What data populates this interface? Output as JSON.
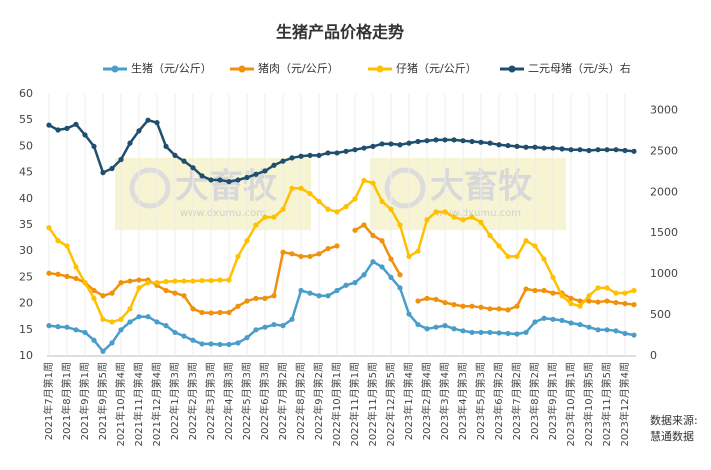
{
  "chart_data": {
    "type": "line",
    "title": "生猪产品价格走势",
    "watermark": "大畜牧",
    "watermark_url": "www.dxumu.com",
    "source": [
      "数据来源:",
      "慧通数据"
    ],
    "categories": [
      "2021年7月第1周",
      null,
      "2021年8月第1周",
      null,
      "2021年9月第1周",
      null,
      "2021年9月第5周",
      null,
      "2021年10月第4周",
      null,
      "2021年11月第4周",
      null,
      "2021年12月第4周",
      null,
      "2022年1月第3周",
      null,
      "2022年2月第3周",
      null,
      "2022年3月第3周",
      null,
      "2022年4月第3周",
      null,
      "2022年5月第3周",
      null,
      "2022年6月第3周",
      null,
      "2022年7月第2周",
      null,
      "2022年8月第2周",
      null,
      "2022年9月第2周",
      null,
      "2022年10月第1周",
      null,
      "2022年11月第1周",
      null,
      "2022年11月第5周",
      null,
      "2022年12月第5周",
      null,
      "2023年1月第4周",
      null,
      "2023年2月第4周",
      null,
      "2023年3月第4周",
      null,
      "2023年4月第3周",
      null,
      "2023年5月第3周",
      null,
      "2023年6月第2周",
      null,
      "2023年7月第2周",
      null,
      "2023年8月第2周",
      null,
      "2023年9月第1周",
      null,
      "2023年10月第1周",
      null,
      "2023年10月第5周",
      null,
      "2023年11月第5周",
      null,
      "2023年12月第4周",
      null
    ],
    "series": [
      {
        "name": "生猪（元/公斤）",
        "color": "#4a9dc9",
        "values": [
          15.8,
          15.6,
          15.5,
          15,
          14.5,
          13,
          10.9,
          12.5,
          15,
          16.5,
          17.5,
          17.5,
          16.5,
          15.8,
          14.5,
          13.8,
          13,
          12.3,
          12.3,
          12.2,
          12.2,
          12.5,
          13.5,
          15,
          15.5,
          16,
          15.8,
          17,
          22.5,
          22,
          21.5,
          21.5,
          22.5,
          23.5,
          24,
          25.5,
          28,
          27,
          25,
          23,
          18,
          16,
          15.2,
          15.5,
          15.8,
          15.2,
          14.8,
          14.5,
          14.5,
          14.5,
          14.4,
          14.3,
          14.2,
          14.5,
          16.5,
          17.2,
          17,
          16.8,
          16.3,
          16,
          15.5,
          15,
          15,
          14.8,
          14.3,
          14
        ]
      },
      {
        "name": "猪肉（元/公斤）",
        "color": "#f0900c",
        "values": [
          25.8,
          25.6,
          25.2,
          24.8,
          24,
          22.5,
          21.5,
          22,
          24,
          24.3,
          24.5,
          24.5,
          23.5,
          22.5,
          22,
          21.5,
          19,
          18.3,
          18.2,
          18.3,
          18.3,
          19.5,
          20.5,
          21,
          21,
          21.5,
          29.8,
          29.5,
          29,
          29,
          29.5,
          30.5,
          31,
          null,
          34,
          35,
          33,
          32,
          28.5,
          25.5,
          null,
          20.5,
          21,
          20.8,
          20.2,
          19.8,
          19.5,
          19.5,
          19.3,
          19,
          19,
          18.8,
          19.5,
          22.8,
          22.5,
          22.5,
          22,
          22,
          21,
          20.5,
          20.5,
          20.3,
          20.5,
          20.2,
          20,
          19.8
        ]
      },
      {
        "name": "仔猪（元/公斤）",
        "color": "#ffc000",
        "values": [
          34.5,
          32,
          31,
          27,
          24,
          21,
          17,
          16.5,
          17,
          19,
          23,
          24,
          24,
          24.2,
          24.3,
          24.3,
          24.3,
          24.4,
          24.4,
          24.5,
          24.5,
          29,
          32,
          35,
          36.5,
          36.5,
          38,
          42,
          42,
          41,
          39.5,
          38,
          37.5,
          38.5,
          40,
          43.5,
          43,
          39.5,
          38,
          35,
          29,
          30,
          36,
          37.5,
          37.5,
          36.5,
          36,
          36.5,
          35.5,
          33,
          31,
          29,
          29,
          32,
          31,
          28.5,
          25,
          21.5,
          20,
          19.5,
          21.5,
          23,
          23,
          22,
          22,
          22.5
        ]
      },
      {
        "name": "二元母猪（元/头）右",
        "color": "#1f4e6e",
        "axis": "y2",
        "values": [
          2820,
          2760,
          2780,
          2830,
          2700,
          2560,
          2240,
          2290,
          2400,
          2600,
          2750,
          2880,
          2850,
          2560,
          2450,
          2380,
          2300,
          2200,
          2150,
          2150,
          2130,
          2150,
          2180,
          2220,
          2260,
          2330,
          2380,
          2420,
          2440,
          2450,
          2450,
          2480,
          2480,
          2500,
          2520,
          2540,
          2560,
          2590,
          2590,
          2580,
          2600,
          2620,
          2630,
          2640,
          2640,
          2640,
          2630,
          2620,
          2610,
          2600,
          2580,
          2570,
          2560,
          2550,
          2550,
          2540,
          2540,
          2530,
          2520,
          2520,
          2510,
          2520,
          2520,
          2520,
          2510,
          2500
        ]
      }
    ],
    "ylim": [
      10,
      60
    ],
    "yticks": [
      10,
      15,
      20,
      25,
      30,
      35,
      40,
      45,
      50,
      55,
      60
    ],
    "y2lim": [
      0,
      3200
    ],
    "y2ticks": [
      0,
      500,
      1000,
      1500,
      2000,
      2500,
      3000
    ]
  }
}
